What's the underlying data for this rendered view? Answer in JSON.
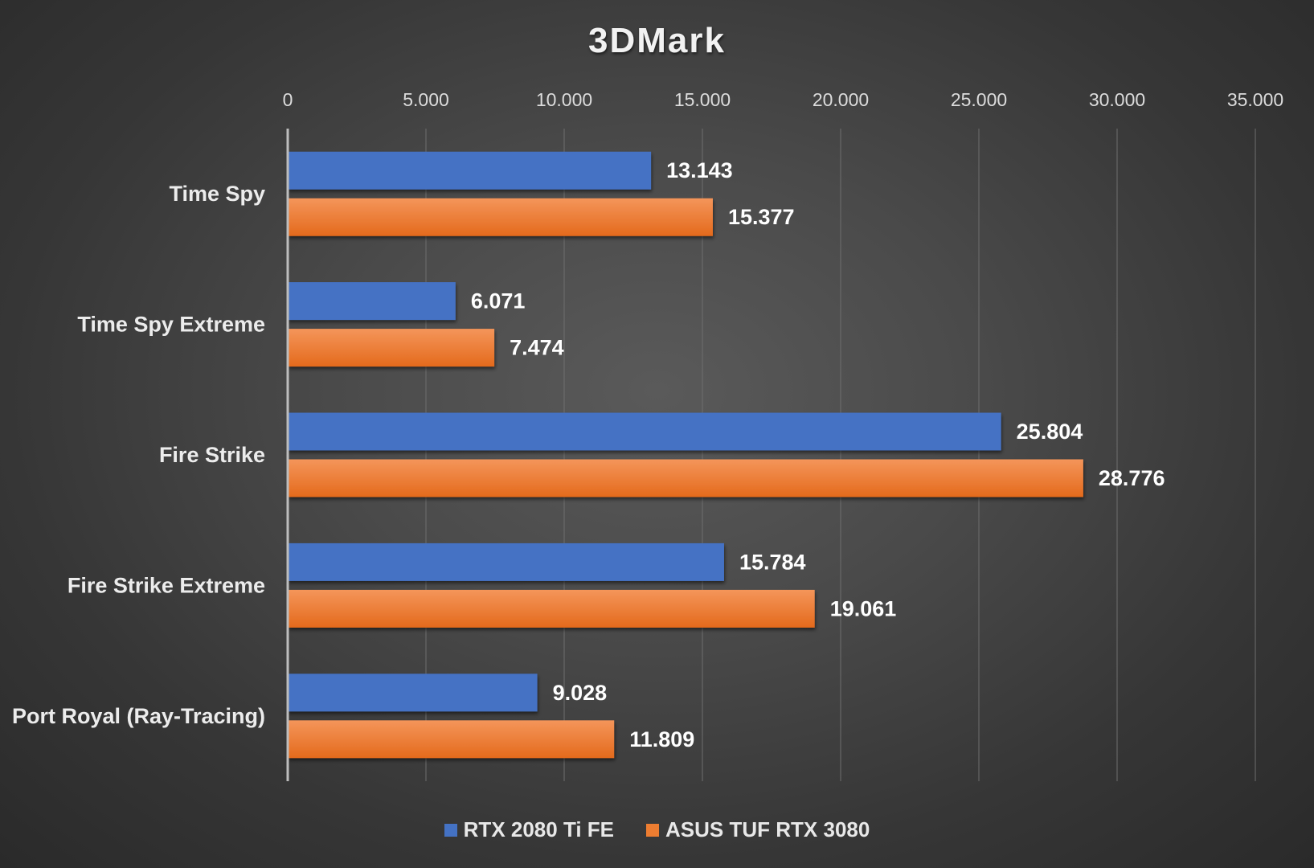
{
  "chart_data": {
    "type": "bar",
    "orientation": "horizontal",
    "title": "3DMark",
    "categories": [
      "Time Spy",
      "Time Spy Extreme",
      "Fire Strike",
      "Fire Strike Extreme",
      "Port Royal (Ray-Tracing)"
    ],
    "series": [
      {
        "name": "RTX 2080 Ti FE",
        "color": "#4472c4",
        "values": [
          13143,
          6071,
          25804,
          15784,
          9028
        ],
        "labels": [
          "13.143",
          "6.071",
          "25.804",
          "15.784",
          "9.028"
        ]
      },
      {
        "name": "ASUS TUF RTX 3080",
        "color": "#ed7d31",
        "values": [
          15377,
          7474,
          28776,
          19061,
          11809
        ],
        "labels": [
          "15.377",
          "7.474",
          "28.776",
          "19.061",
          "11.809"
        ]
      }
    ],
    "xlim": [
      0,
      35000
    ],
    "ticks": [
      0,
      5000,
      10000,
      15000,
      20000,
      25000,
      30000,
      35000
    ],
    "tick_labels": [
      "0",
      "5.000",
      "10.000",
      "15.000",
      "20.000",
      "25.000",
      "30.000",
      "35.000"
    ],
    "axis_position": "top",
    "grid": true,
    "legend_position": "bottom"
  }
}
